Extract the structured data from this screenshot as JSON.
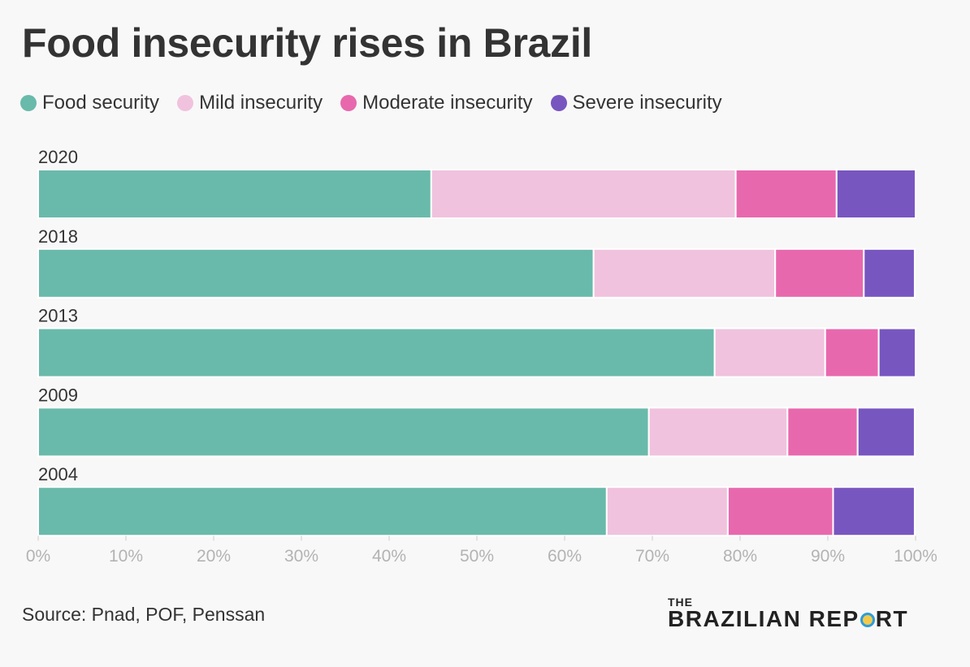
{
  "title": "Food insecurity rises in Brazil",
  "legend": [
    {
      "label": "Food security",
      "color": "#69baab"
    },
    {
      "label": "Mild insecurity",
      "color": "#f0c2de"
    },
    {
      "label": "Moderate insecurity",
      "color": "#e868ae"
    },
    {
      "label": "Severe insecurity",
      "color": "#7856c0"
    }
  ],
  "chart_data": {
    "type": "bar",
    "orientation": "horizontal",
    "stacked": true,
    "categories": [
      "2020",
      "2018",
      "2013",
      "2009",
      "2004"
    ],
    "series": [
      {
        "name": "Food security",
        "color": "#69baab",
        "values": [
          44.8,
          63.3,
          77.1,
          69.6,
          64.8
        ]
      },
      {
        "name": "Mild insecurity",
        "color": "#f0c2de",
        "values": [
          34.7,
          20.7,
          12.6,
          15.8,
          13.8
        ]
      },
      {
        "name": "Moderate insecurity",
        "color": "#e868ae",
        "values": [
          11.5,
          10.1,
          6.1,
          8.0,
          12.0
        ]
      },
      {
        "name": "Severe insecurity",
        "color": "#7856c0",
        "values": [
          9.0,
          5.8,
          4.2,
          6.5,
          9.3
        ]
      }
    ],
    "xticks": [
      "0%",
      "10%",
      "20%",
      "30%",
      "40%",
      "50%",
      "60%",
      "70%",
      "80%",
      "90%",
      "100%"
    ],
    "xlim": [
      0,
      100
    ],
    "grid": false,
    "legend_position": "top-left"
  },
  "source": "Source: Pnad, POF, Penssan",
  "logo": {
    "top": "THE",
    "main_before": "BRAZILIAN REP",
    "main_after": "RT"
  }
}
